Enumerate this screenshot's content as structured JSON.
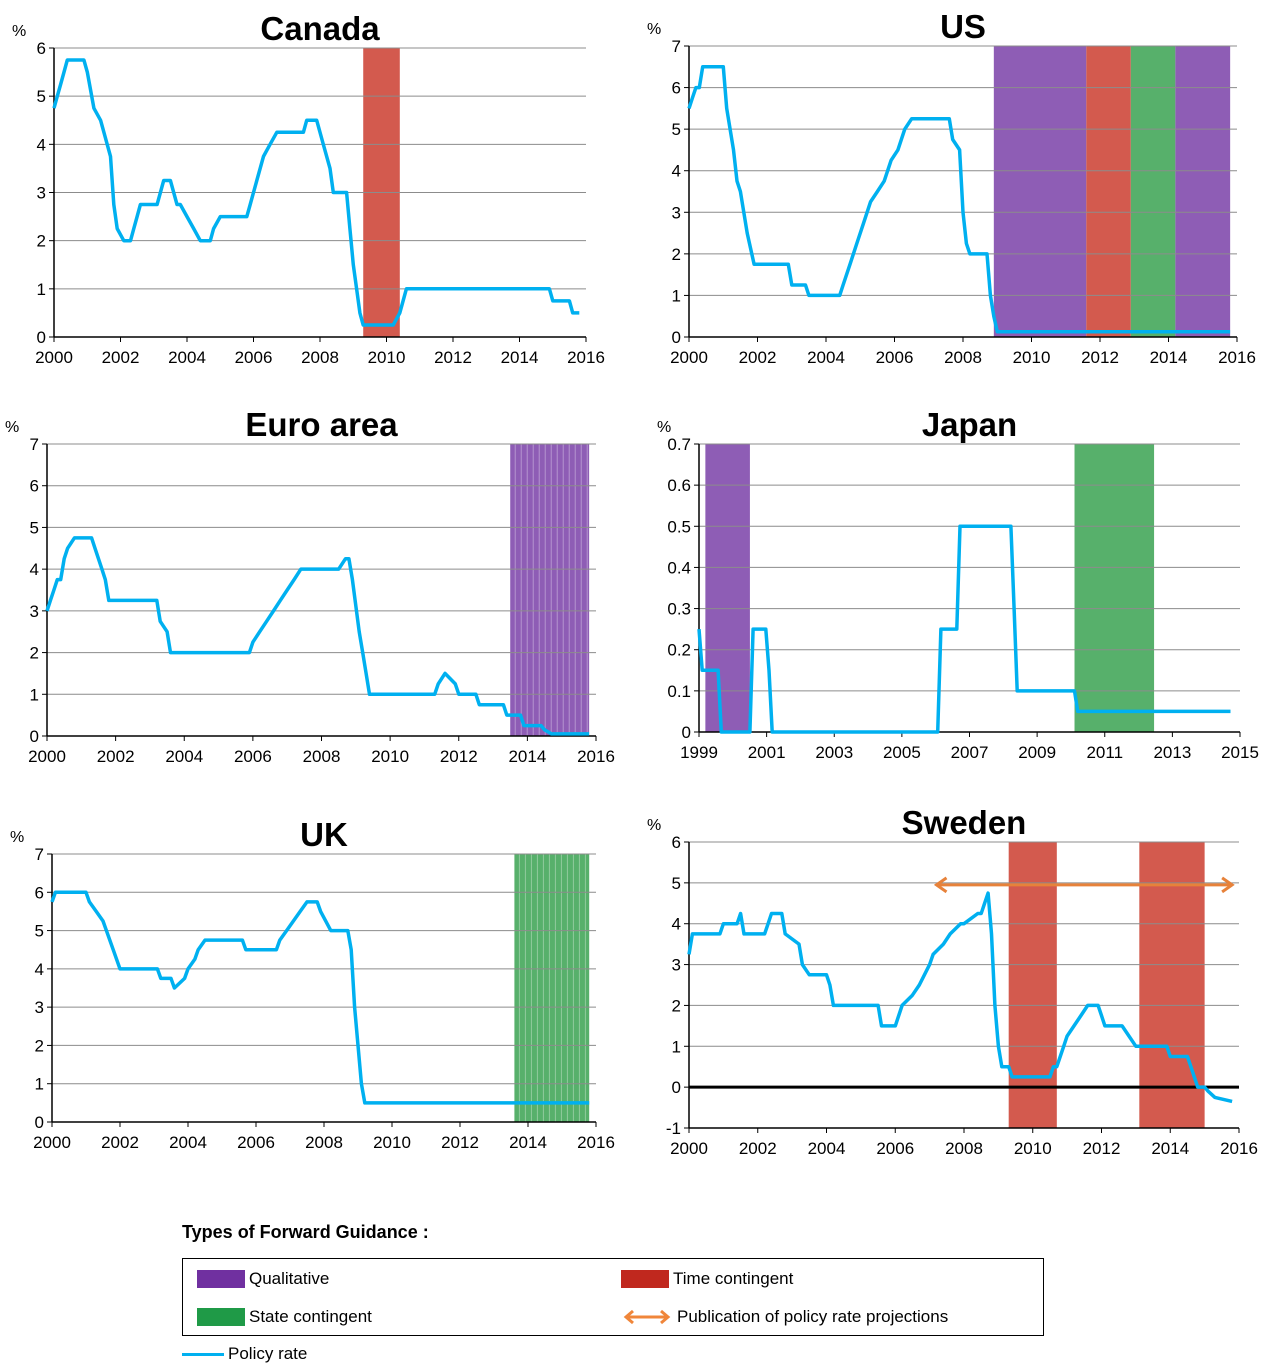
{
  "colors": {
    "policy_rate": "#00b0f0",
    "qualitative": "#8e5db5",
    "time_contingent": "#d35a4e",
    "state_contingent": "#57b06b",
    "projection_arrow": "#e7823a",
    "gridline": "#8c8c8c"
  },
  "legend": {
    "title": "Types of Forward Guidance :",
    "qualitative": "Qualitative",
    "time_contingent": "Time contingent",
    "state_contingent": "State contingent",
    "projections": "Publication of policy rate projections",
    "policy_rate": "Policy rate"
  },
  "chart_data": [
    {
      "type": "line",
      "title": "Canada",
      "ylabel": "%",
      "xlim": [
        2000,
        2016
      ],
      "ylim": [
        0,
        6
      ],
      "yticks": [
        "0",
        "1",
        "2",
        "3",
        "4",
        "5",
        "6"
      ],
      "xticks": [
        "2000",
        "2002",
        "2004",
        "2006",
        "2008",
        "2010",
        "2012",
        "2014",
        "2016"
      ],
      "grid": true,
      "bands": [
        {
          "type": "time_contingent",
          "from": 2009.3,
          "to": 2010.4
        }
      ],
      "series": [
        {
          "name": "Policy rate",
          "x": [
            2000.0,
            2000.1,
            2000.2,
            2000.3,
            2000.4,
            2000.5,
            2000.9,
            2001.0,
            2001.2,
            2001.4,
            2001.5,
            2001.7,
            2001.8,
            2001.9,
            2002.1,
            2002.3,
            2002.4,
            2002.5,
            2002.6,
            2002.8,
            2003.0,
            2003.1,
            2003.2,
            2003.3,
            2003.5,
            2003.6,
            2003.7,
            2003.8,
            2004.0,
            2004.2,
            2004.4,
            2004.5,
            2004.7,
            2004.8,
            2005.0,
            2005.5,
            2005.8,
            2005.9,
            2006.1,
            2006.3,
            2006.5,
            2006.7,
            2006.8,
            2007.5,
            2007.6,
            2007.9,
            2008.0,
            2008.1,
            2008.3,
            2008.4,
            2008.8,
            2008.9,
            2009.0,
            2009.1,
            2009.2,
            2009.3,
            2009.4,
            2010.2,
            2010.4,
            2010.5,
            2010.6,
            2010.7,
            2014.9,
            2015.0,
            2015.5,
            2015.6,
            2015.8
          ],
          "y": [
            4.75,
            5.0,
            5.25,
            5.5,
            5.75,
            5.75,
            5.75,
            5.5,
            4.75,
            4.5,
            4.25,
            3.75,
            2.75,
            2.25,
            2.0,
            2.0,
            2.25,
            2.5,
            2.75,
            2.75,
            2.75,
            2.75,
            3.0,
            3.25,
            3.25,
            3.0,
            2.75,
            2.75,
            2.5,
            2.25,
            2.0,
            2.0,
            2.0,
            2.25,
            2.5,
            2.5,
            2.5,
            2.75,
            3.25,
            3.75,
            4.0,
            4.25,
            4.25,
            4.25,
            4.5,
            4.5,
            4.25,
            4.0,
            3.5,
            3.0,
            3.0,
            2.25,
            1.5,
            1.0,
            0.5,
            0.25,
            0.25,
            0.25,
            0.5,
            0.75,
            1.0,
            1.0,
            1.0,
            0.75,
            0.75,
            0.5,
            0.5
          ]
        }
      ]
    },
    {
      "type": "line",
      "title": "US",
      "ylabel": "%",
      "xlim": [
        2000,
        2016
      ],
      "ylim": [
        0,
        7
      ],
      "yticks": [
        "0",
        "1",
        "2",
        "3",
        "4",
        "5",
        "6",
        "7"
      ],
      "xticks": [
        "2000",
        "2002",
        "2004",
        "2006",
        "2008",
        "2010",
        "2012",
        "2014",
        "2016"
      ],
      "grid": true,
      "bands": [
        {
          "type": "qualitative",
          "from": 2008.9,
          "to": 2011.6
        },
        {
          "type": "time_contingent",
          "from": 2011.6,
          "to": 2012.9
        },
        {
          "type": "state_contingent",
          "from": 2012.9,
          "to": 2014.2
        },
        {
          "type": "qualitative",
          "from": 2014.2,
          "to": 2015.8
        }
      ],
      "series": [
        {
          "name": "Policy rate",
          "x": [
            2000.0,
            2000.1,
            2000.2,
            2000.3,
            2000.4,
            2001.0,
            2001.1,
            2001.3,
            2001.4,
            2001.5,
            2001.7,
            2001.9,
            2002.0,
            2002.9,
            2003.0,
            2003.4,
            2003.5,
            2004.4,
            2004.5,
            2004.7,
            2004.9,
            2005.1,
            2005.3,
            2005.5,
            2005.7,
            2005.9,
            2006.1,
            2006.3,
            2006.5,
            2006.6,
            2007.6,
            2007.7,
            2007.9,
            2008.0,
            2008.1,
            2008.2,
            2008.3,
            2008.7,
            2008.8,
            2008.9,
            2009.0,
            2015.8
          ],
          "y": [
            5.5,
            5.75,
            6.0,
            6.0,
            6.5,
            6.5,
            5.5,
            4.5,
            3.75,
            3.5,
            2.5,
            1.75,
            1.75,
            1.75,
            1.25,
            1.25,
            1.0,
            1.0,
            1.25,
            1.75,
            2.25,
            2.75,
            3.25,
            3.5,
            3.75,
            4.25,
            4.5,
            5.0,
            5.25,
            5.25,
            5.25,
            4.75,
            4.5,
            3.0,
            2.25,
            2.0,
            2.0,
            2.0,
            1.0,
            0.5,
            0.125,
            0.125
          ]
        }
      ]
    },
    {
      "type": "line",
      "title": "Euro area",
      "ylabel": "%",
      "xlim": [
        2000,
        2016
      ],
      "ylim": [
        0,
        7
      ],
      "yticks": [
        "0",
        "1",
        "2",
        "3",
        "4",
        "5",
        "6",
        "7"
      ],
      "xticks": [
        "2000",
        "2002",
        "2004",
        "2006",
        "2008",
        "2010",
        "2012",
        "2014",
        "2016"
      ],
      "grid": true,
      "bands": [
        {
          "type": "qualitative",
          "from": 2013.5,
          "to": 2015.8,
          "hatched": true
        }
      ],
      "series": [
        {
          "name": "Policy rate",
          "x": [
            2000.0,
            2000.1,
            2000.2,
            2000.3,
            2000.4,
            2000.5,
            2000.6,
            2000.8,
            2001.3,
            2001.4,
            2001.6,
            2001.7,
            2001.8,
            2003.2,
            2003.3,
            2003.5,
            2003.6,
            2005.9,
            2006.0,
            2006.2,
            2006.4,
            2006.6,
            2006.8,
            2007.0,
            2007.2,
            2007.4,
            2007.6,
            2007.7,
            2008.5,
            2008.7,
            2008.8,
            2008.9,
            2009.1,
            2009.2,
            2009.3,
            2009.4,
            2011.3,
            2011.4,
            2011.6,
            2011.9,
            2012.0,
            2012.5,
            2012.6,
            2013.3,
            2013.4,
            2013.8,
            2013.9,
            2014.4,
            2014.5,
            2014.7,
            2014.8,
            2015.8
          ],
          "y": [
            3.0,
            3.25,
            3.5,
            3.75,
            3.75,
            4.25,
            4.5,
            4.75,
            4.75,
            4.5,
            4.0,
            3.75,
            3.25,
            3.25,
            2.75,
            2.5,
            2.0,
            2.0,
            2.25,
            2.5,
            2.75,
            3.0,
            3.25,
            3.5,
            3.75,
            4.0,
            4.0,
            4.0,
            4.0,
            4.25,
            4.25,
            3.75,
            2.5,
            2.0,
            1.5,
            1.0,
            1.0,
            1.25,
            1.5,
            1.25,
            1.0,
            1.0,
            0.75,
            0.75,
            0.5,
            0.5,
            0.25,
            0.25,
            0.15,
            0.05,
            0.05,
            0.05
          ]
        }
      ]
    },
    {
      "type": "line",
      "title": "Japan",
      "ylabel": "%",
      "xlim": [
        1999,
        2016
      ],
      "ylim": [
        0,
        0.7
      ],
      "yticks": [
        "0",
        "0.1",
        "0.2",
        "0.3",
        "0.4",
        "0.5",
        "0.6",
        "0.7"
      ],
      "xticks": [
        "1999",
        "2001",
        "2003",
        "2005",
        "2007",
        "2009",
        "2011",
        "2013",
        "2015"
      ],
      "grid": true,
      "bands": [
        {
          "type": "qualitative",
          "from": 1999.2,
          "to": 2000.6
        },
        {
          "type": "state_contingent",
          "from": 2010.8,
          "to": 2013.3
        }
      ],
      "series": [
        {
          "name": "Policy rate",
          "x": [
            1999.0,
            1999.1,
            1999.2,
            1999.6,
            1999.7,
            2000.6,
            2000.7,
            2001.1,
            2001.2,
            2001.3,
            2006.5,
            2006.6,
            2007.1,
            2007.2,
            2008.8,
            2008.9,
            2009.0,
            2010.8,
            2010.9,
            2015.7
          ],
          "y": [
            0.25,
            0.15,
            0.15,
            0.15,
            0.0,
            0.0,
            0.25,
            0.25,
            0.15,
            0.0,
            0.0,
            0.25,
            0.25,
            0.5,
            0.5,
            0.3,
            0.1,
            0.1,
            0.05,
            0.05
          ]
        }
      ]
    },
    {
      "type": "line",
      "title": "UK",
      "ylabel": "%",
      "xlim": [
        2000,
        2016
      ],
      "ylim": [
        0,
        7
      ],
      "yticks": [
        "0",
        "1",
        "2",
        "3",
        "4",
        "5",
        "6",
        "7"
      ],
      "xticks": [
        "2000",
        "2002",
        "2004",
        "2006",
        "2008",
        "2010",
        "2012",
        "2014",
        "2016"
      ],
      "grid": true,
      "bands": [
        {
          "type": "state_contingent",
          "from": 2013.6,
          "to": 2015.8,
          "hatched": true
        }
      ],
      "series": [
        {
          "name": "Policy rate",
          "x": [
            2000.0,
            2000.1,
            2001.0,
            2001.1,
            2001.3,
            2001.5,
            2001.6,
            2001.8,
            2002.0,
            2003.1,
            2003.2,
            2003.5,
            2003.6,
            2003.9,
            2004.0,
            2004.2,
            2004.3,
            2004.5,
            2004.6,
            2005.6,
            2005.7,
            2006.6,
            2006.7,
            2006.9,
            2007.1,
            2007.3,
            2007.5,
            2007.8,
            2007.9,
            2008.2,
            2008.7,
            2008.8,
            2008.9,
            2009.0,
            2009.1,
            2009.2,
            2015.8
          ],
          "y": [
            5.75,
            6.0,
            6.0,
            5.75,
            5.5,
            5.25,
            5.0,
            4.5,
            4.0,
            4.0,
            3.75,
            3.75,
            3.5,
            3.75,
            4.0,
            4.25,
            4.5,
            4.75,
            4.75,
            4.75,
            4.5,
            4.5,
            4.75,
            5.0,
            5.25,
            5.5,
            5.75,
            5.75,
            5.5,
            5.0,
            5.0,
            4.5,
            3.0,
            2.0,
            1.0,
            0.5,
            0.5
          ]
        }
      ]
    },
    {
      "type": "line",
      "title": "Sweden",
      "ylabel": "%",
      "xlim": [
        2000,
        2016
      ],
      "ylim": [
        -1,
        6
      ],
      "yticks": [
        "-1",
        "0",
        "1",
        "2",
        "3",
        "4",
        "5",
        "6"
      ],
      "xticks": [
        "2000",
        "2002",
        "2004",
        "2006",
        "2008",
        "2010",
        "2012",
        "2014",
        "2016"
      ],
      "grid": true,
      "zero_line": true,
      "bands": [
        {
          "type": "time_contingent",
          "from": 2009.3,
          "to": 2010.7
        },
        {
          "type": "time_contingent",
          "from": 2013.1,
          "to": 2015.0
        }
      ],
      "projection_arrow": {
        "from": 2007.2,
        "to": 2015.8,
        "y": 4.95
      },
      "series": [
        {
          "name": "Policy rate",
          "x": [
            2000.0,
            2000.1,
            2000.9,
            2001.0,
            2001.4,
            2001.5,
            2001.6,
            2002.2,
            2002.3,
            2002.4,
            2002.5,
            2002.7,
            2002.8,
            2003.2,
            2003.3,
            2003.5,
            2003.6,
            2004.0,
            2004.1,
            2004.2,
            2005.5,
            2005.6,
            2006.0,
            2006.2,
            2006.5,
            2006.7,
            2007.0,
            2007.1,
            2007.4,
            2007.6,
            2007.9,
            2008.0,
            2008.4,
            2008.5,
            2008.6,
            2008.7,
            2008.8,
            2008.9,
            2009.0,
            2009.1,
            2009.3,
            2009.4,
            2009.5,
            2010.5,
            2010.6,
            2010.7,
            2010.9,
            2011.0,
            2011.2,
            2011.4,
            2011.6,
            2011.9,
            2012.0,
            2012.1,
            2012.6,
            2012.8,
            2013.0,
            2013.9,
            2014.0,
            2014.5,
            2014.6,
            2014.7,
            2014.8,
            2015.0,
            2015.1,
            2015.3,
            2015.8
          ],
          "y": [
            3.25,
            3.75,
            3.75,
            4.0,
            4.0,
            4.25,
            3.75,
            3.75,
            4.0,
            4.25,
            4.25,
            4.25,
            3.75,
            3.5,
            3.0,
            2.75,
            2.75,
            2.75,
            2.5,
            2.0,
            2.0,
            1.5,
            1.5,
            2.0,
            2.25,
            2.5,
            3.0,
            3.25,
            3.5,
            3.75,
            4.0,
            4.0,
            4.25,
            4.25,
            4.5,
            4.75,
            3.75,
            2.0,
            1.0,
            0.5,
            0.5,
            0.25,
            0.25,
            0.25,
            0.5,
            0.5,
            1.0,
            1.25,
            1.5,
            1.75,
            2.0,
            2.0,
            1.75,
            1.5,
            1.5,
            1.25,
            1.0,
            1.0,
            0.75,
            0.75,
            0.5,
            0.25,
            0.0,
            0.0,
            -0.1,
            -0.25,
            -0.35
          ]
        }
      ]
    }
  ]
}
